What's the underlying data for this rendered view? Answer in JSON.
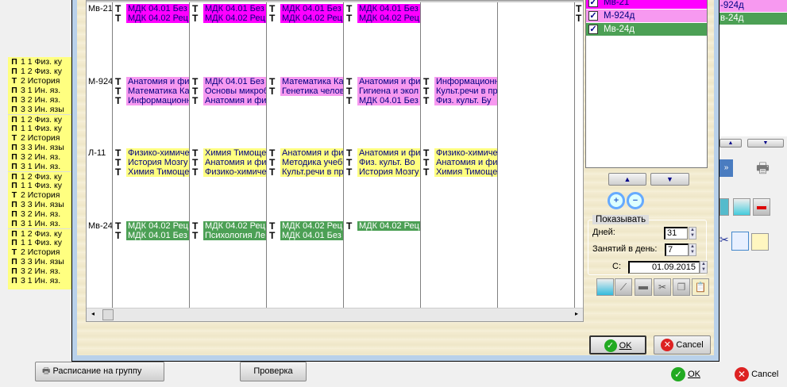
{
  "left_list": [
    {
      "mark": "П",
      "text": "1 1 Физ. ку"
    },
    {
      "mark": "П",
      "text": "1 2 Физ. ку"
    },
    {
      "mark": "Т",
      "text": "2  История"
    },
    {
      "mark": "П",
      "text": "3 1 Ин. яз."
    },
    {
      "mark": "П",
      "text": "3 2 Ин. яз."
    },
    {
      "mark": "П",
      "text": "3 3 Ин. язы"
    },
    {
      "mark": "П",
      "text": "1 2 Физ. ку"
    },
    {
      "mark": "П",
      "text": "1 1 Физ. ку"
    },
    {
      "mark": "Т",
      "text": "2  История"
    },
    {
      "mark": "П",
      "text": "3 3 Ин. язы"
    },
    {
      "mark": "П",
      "text": "3 2 Ин. яз."
    },
    {
      "mark": "П",
      "text": "3 1 Ин. яз."
    },
    {
      "mark": "П",
      "text": "1 2 Физ. ку"
    },
    {
      "mark": "П",
      "text": "1 1 Физ. ку"
    },
    {
      "mark": "Т",
      "text": "2  История"
    },
    {
      "mark": "П",
      "text": "3 3 Ин. язы"
    },
    {
      "mark": "П",
      "text": "3 2 Ин. яз."
    },
    {
      "mark": "П",
      "text": "3 1 Ин. яз."
    },
    {
      "mark": "П",
      "text": "1 2 Физ. ку"
    },
    {
      "mark": "П",
      "text": "1 1 Физ. ку"
    },
    {
      "mark": "Т",
      "text": "2  История"
    },
    {
      "mark": "П",
      "text": "3 3 Ин. язы"
    },
    {
      "mark": "П",
      "text": "3 2 Ин. яз."
    },
    {
      "mark": "П",
      "text": "3 1 Ин. яз."
    }
  ],
  "grid": {
    "marker": "Т",
    "groups": [
      {
        "label": "Мв-21",
        "color": "#ff00ff",
        "text_color": "#000080",
        "days": [
          [
            "МДК 04.01 Без",
            "МДК 04.02 Рец"
          ],
          [
            "МДК 04.01 Без",
            "МДК 04.02 Рец"
          ],
          [
            "МДК 04.01 Без",
            "МДК 04.02 Рец"
          ],
          [
            "МДК 04.01 Без",
            "МДК 04.02 Рец"
          ],
          [],
          []
        ]
      },
      {
        "label": "М-924",
        "color": "#f799f0",
        "text_color": "#000080",
        "days": [
          [
            "Анатомия и физ",
            "Математика  Ка",
            "Информационн"
          ],
          [
            "МДК 04.01 Без",
            "Основы микроб",
            "Анатомия и физ"
          ],
          [
            "Математика  Ка",
            "Генетика челов"
          ],
          [
            "Анатомия и физ",
            "Гигиена и экол",
            "МДК 04.01 Без"
          ],
          [
            "Информационн",
            "Культ.речи в пр",
            "Физ. культ.  Бу"
          ],
          []
        ]
      },
      {
        "label": "Л-11",
        "color": "#ffff80",
        "text_color": "#000080",
        "days": [
          [
            "Физико-химиче",
            "История  Мозгу",
            "Химия  Тимоще"
          ],
          [
            "Химия  Тимоще",
            "Анатомия и физ",
            "Физико-химиче"
          ],
          [
            "Анатомия и физ",
            "Методика учебі",
            "Культ.речи в пр"
          ],
          [
            "Анатомия и физ",
            "Физ. культ.  Во",
            "История  Мозгу"
          ],
          [
            "Физико-химиче",
            "Анатомия и физ",
            "Химия  Тимоще"
          ],
          []
        ]
      },
      {
        "label": "Мв-24",
        "color": "#4ca055",
        "text_color": "#ffffff",
        "days": [
          [
            "МДК 04.02 Рец",
            "МДК 04.01 Без"
          ],
          [
            "МДК 04.02 Рец",
            "Психология  Ле"
          ],
          [
            "МДК 04.02 Рец",
            "МДК 04.01 Без"
          ],
          [
            "МДК 04.02 Рец"
          ],
          [],
          []
        ]
      }
    ]
  },
  "group_list": [
    {
      "label": "Мв-21",
      "checked": true,
      "color": "#ff00ff",
      "text_color": "#000080"
    },
    {
      "label": "М-924д",
      "checked": true,
      "color": "#f799f0",
      "text_color": "#000080"
    },
    {
      "label": "Мв-24д",
      "checked": true,
      "color": "#4ca055",
      "text_color": "#ffffff"
    }
  ],
  "show": {
    "title": "Показывать",
    "days_label": "Дней:",
    "days": "31",
    "lessons_label": "Занятий в день:",
    "lessons": "7",
    "from_label": "С:",
    "from": "01.09.2015"
  },
  "dialog": {
    "ok": "OK",
    "cancel": "Cancel"
  },
  "main": {
    "schedule_button": "Расписание на группу",
    "check_button": "Проверка",
    "ok": "OK",
    "cancel": "Cancel"
  },
  "bg_list": [
    {
      "label": "-924д",
      "color": "#f799f0"
    },
    {
      "label": "в-24д",
      "color": "#4ca055"
    }
  ]
}
